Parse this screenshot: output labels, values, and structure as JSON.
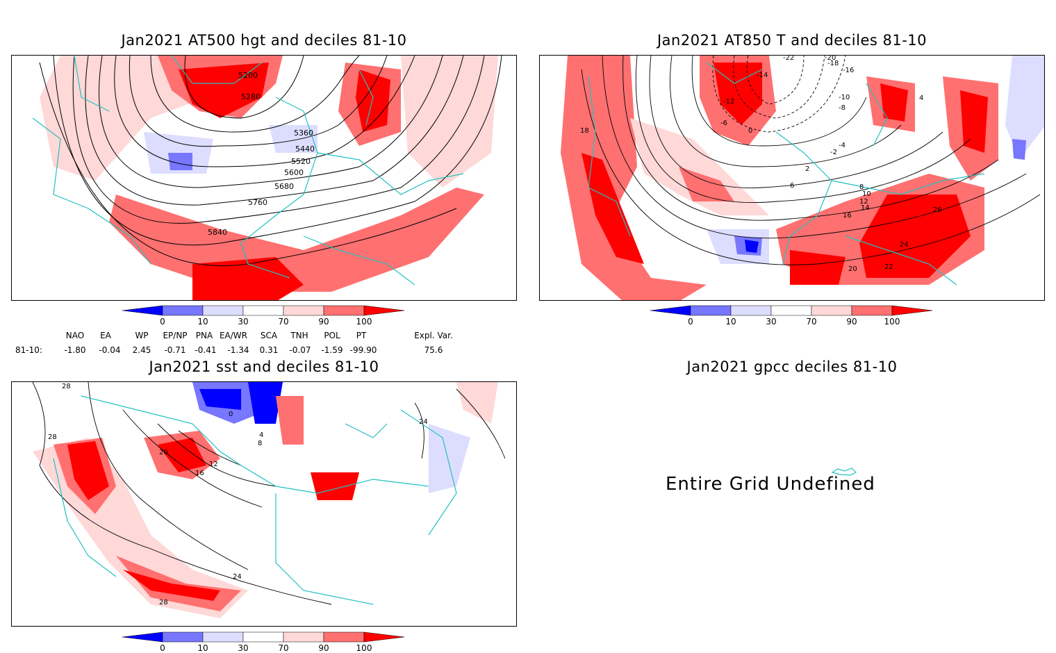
{
  "panels": {
    "p1": {
      "title": "Jan2021 AT500 hgt and deciles 81-10",
      "contour_labels": [
        "5200",
        "5280",
        "5360",
        "5440",
        "5520",
        "5600",
        "5680",
        "5760",
        "5840"
      ]
    },
    "p2": {
      "title": "Jan2021 AT850 T and deciles 81-10",
      "contour_labels": [
        "-22",
        "-20",
        "-18",
        "-16",
        "-14",
        "-12",
        "-10",
        "-8",
        "-6",
        "-4",
        "-2",
        "0",
        "2",
        "4",
        "6",
        "8",
        "10",
        "12",
        "14",
        "16",
        "18",
        "20",
        "22",
        "24",
        "26"
      ]
    },
    "p3": {
      "title": "Jan2021 sst and deciles 81-10",
      "contour_labels": [
        "28",
        "24",
        "20",
        "16",
        "12",
        "8",
        "4",
        "0",
        "28",
        "24",
        "28"
      ]
    },
    "p4": {
      "title": "Jan2021 gpcc deciles 81-10",
      "message": "Entire Grid Undefined"
    }
  },
  "colorbar": {
    "labels": [
      "0",
      "10",
      "30",
      "70",
      "90",
      "100"
    ],
    "colors": [
      "#0000ff",
      "#7777ff",
      "#ddddff",
      "#ffffff",
      "#ffd8d8",
      "#ff7070",
      "#ff0000"
    ]
  },
  "indices": {
    "headers": [
      "NAO",
      "EA",
      "WP",
      "EP/NP",
      "PNA",
      "EA/WR",
      "SCA",
      "TNH",
      "POL",
      "PT",
      "Expl. Var."
    ],
    "row_label": "81-10:",
    "values": [
      "-1.80",
      "-0.04",
      "2.45",
      "-0.71",
      "-0.41",
      "-1.34",
      "0.31",
      "-0.07",
      "-1.59",
      "-99.90",
      "75.6"
    ]
  },
  "colors": {
    "coast": "#22c1c1",
    "contour": "#000000"
  }
}
